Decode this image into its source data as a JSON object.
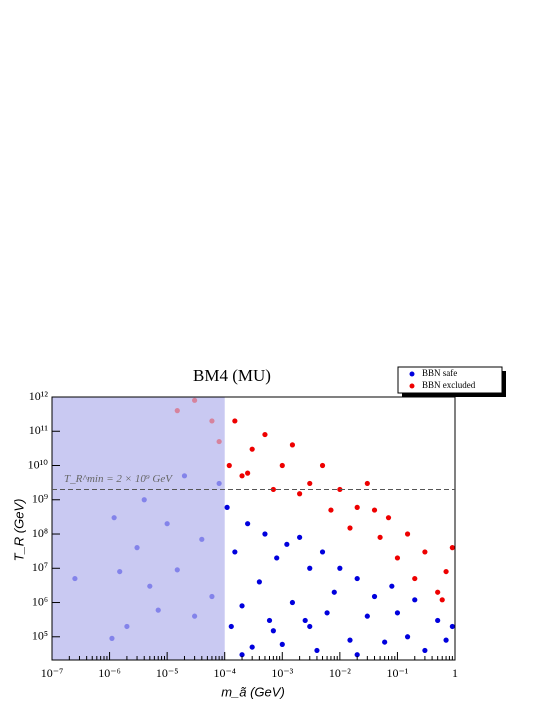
{
  "chart_data": {
    "type": "scatter",
    "title": "BM4 (MU)",
    "x_label": "m_ã (GeV)",
    "y_label": "T_R (GeV)",
    "log_x": true,
    "log_y": true,
    "xlim": [
      1e-07,
      1
    ],
    "ylim": [
      21000,
      1000000000000.0
    ],
    "xticks": [
      {
        "value": 1e-07,
        "label": "10⁻⁷"
      },
      {
        "value": 1e-06,
        "label": "10⁻⁶"
      },
      {
        "value": 1e-05,
        "label": "10⁻⁵"
      },
      {
        "value": 0.0001,
        "label": "10⁻⁴"
      },
      {
        "value": 0.001,
        "label": "10⁻³"
      },
      {
        "value": 0.01,
        "label": "10⁻²"
      },
      {
        "value": 0.1,
        "label": "10⁻¹"
      },
      1
    ],
    "yticks": [
      {
        "value": 100000.0,
        "label": "10⁵"
      },
      {
        "value": 1000000.0,
        "label": "10⁶"
      },
      {
        "value": 10000000.0,
        "label": "10⁷"
      },
      {
        "value": 100000000.0,
        "label": "10⁸"
      },
      {
        "value": 1000000000.0,
        "label": "10⁹"
      },
      {
        "value": 10000000000.0,
        "label": "10¹⁰"
      },
      {
        "value": 100000000000.0,
        "label": "10¹¹"
      },
      {
        "value": 1000000000000.0,
        "label": "10¹²"
      }
    ],
    "hline": {
      "value": 2000000000.0,
      "label": "T_R^min = 2 × 10⁹ GeV"
    },
    "shaded_region": {
      "xlim": [
        1e-07,
        0.0001
      ],
      "color": "#c9c9f2"
    },
    "legend": "top-right",
    "series": [
      {
        "name": "BBN safe",
        "color": "#0000dd",
        "x": [
          1.2e-06,
          1.5e-06,
          2e-06,
          3e-06,
          4e-06,
          5e-06,
          7e-06,
          1e-05,
          1.5e-05,
          2e-05,
          3e-05,
          4e-05,
          6e-05,
          8e-05,
          1.1e-06,
          2.5e-07,
          0.00011,
          0.00013,
          0.00015,
          0.0002,
          0.00025,
          0.0003,
          0.0004,
          0.0005,
          0.0006,
          0.0008,
          0.001,
          0.0012,
          0.0015,
          0.002,
          0.0025,
          0.003,
          0.004,
          0.005,
          0.006,
          0.008,
          0.01,
          0.015,
          0.02,
          0.03,
          0.04,
          0.06,
          0.08,
          0.1,
          0.15,
          0.2,
          0.3,
          0.5,
          0.7,
          0.9,
          0.0002,
          0.0007,
          0.003,
          0.02
        ],
        "values": [
          300000000.0,
          8000000.0,
          200000.0,
          40000000.0,
          1000000000.0,
          3000000.0,
          600000.0,
          200000000.0,
          9000000.0,
          5000000000.0,
          400000.0,
          70000000.0,
          1500000.0,
          3000000000.0,
          90000.0,
          5000000.0,
          600000000.0,
          200000.0,
          30000000.0,
          800000.0,
          200000000.0,
          50000.0,
          4000000.0,
          100000000.0,
          300000.0,
          20000000.0,
          60000.0,
          50000000.0,
          1000000.0,
          80000000.0,
          300000.0,
          10000000.0,
          40000.0,
          30000000.0,
          500000.0,
          2000000.0,
          10000000.0,
          80000.0,
          5000000.0,
          400000.0,
          1500000.0,
          70000.0,
          3000000.0,
          500000.0,
          100000.0,
          1200000.0,
          40000.0,
          300000.0,
          80000.0,
          200000.0,
          30000.0,
          150000.0,
          200000.0,
          30000.0
        ]
      },
      {
        "name": "BBN excluded",
        "color": "#ee0000",
        "x": [
          1.5e-05,
          3e-05,
          6e-05,
          8e-05,
          0.00012,
          0.00015,
          0.0002,
          0.0003,
          0.0005,
          0.0007,
          0.001,
          0.0015,
          0.002,
          0.003,
          0.005,
          0.007,
          0.01,
          0.015,
          0.02,
          0.03,
          0.05,
          0.07,
          0.1,
          0.15,
          0.2,
          0.3,
          0.5,
          0.7,
          0.9,
          0.6,
          0.04,
          0.00025
        ],
        "values": [
          400000000000.0,
          800000000000.0,
          200000000000.0,
          50000000000.0,
          10000000000.0,
          200000000000.0,
          5000000000.0,
          30000000000.0,
          80000000000.0,
          2000000000.0,
          10000000000.0,
          40000000000.0,
          1500000000.0,
          3000000000.0,
          10000000000.0,
          500000000.0,
          2000000000.0,
          150000000.0,
          600000000.0,
          3000000000.0,
          80000000.0,
          300000000.0,
          20000000.0,
          100000000.0,
          5000000.0,
          30000000.0,
          2000000.0,
          8000000.0,
          40000000.0,
          1200000.0,
          500000000.0,
          6000000000.0
        ]
      }
    ]
  }
}
